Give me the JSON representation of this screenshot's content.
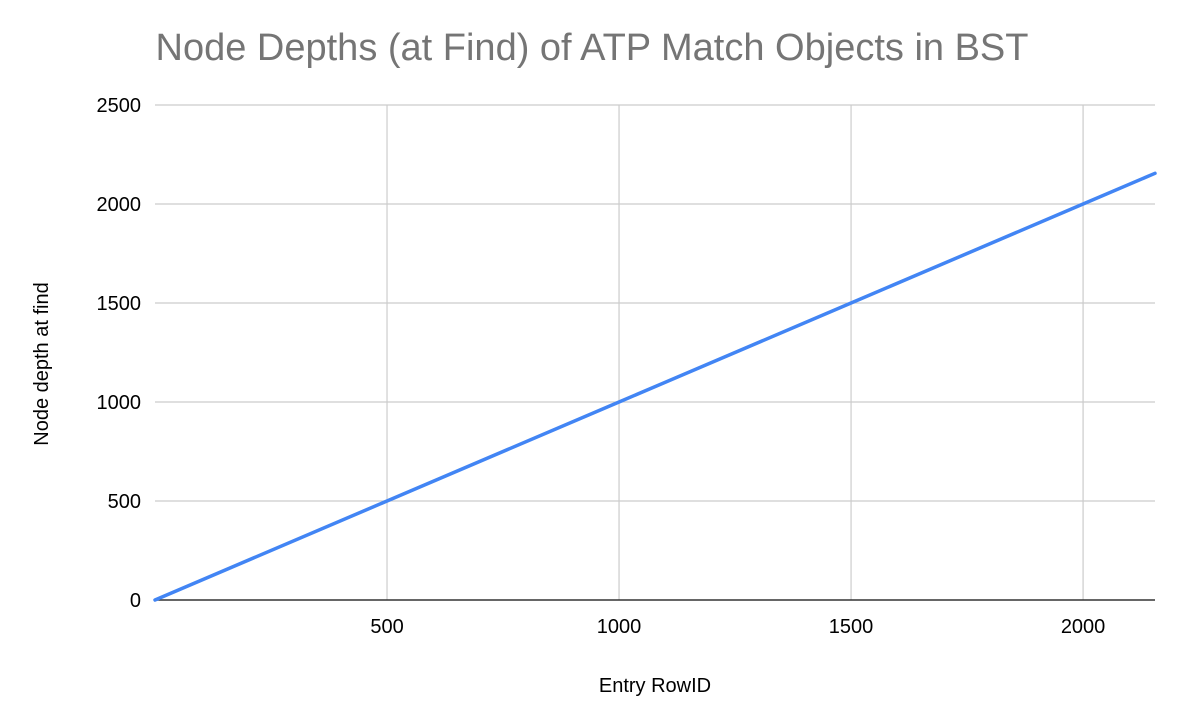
{
  "chart_data": {
    "type": "line",
    "title": "Node Depths (at Find) of ATP Match Objects in BST",
    "xlabel": "Entry RowID",
    "ylabel": "Node depth at find",
    "xlim": [
      0,
      2155
    ],
    "ylim": [
      0,
      2500
    ],
    "x_ticks": [
      500,
      1000,
      1500,
      2000
    ],
    "y_ticks": [
      0,
      500,
      1000,
      1500,
      2000,
      2500
    ],
    "grid": true,
    "legend": "none",
    "series": [
      {
        "color": "#4285f4",
        "x": [
          0,
          500,
          1000,
          1500,
          2000,
          2155
        ],
        "y": [
          0,
          500,
          1000,
          1500,
          2000,
          2155
        ]
      }
    ]
  },
  "colors": {
    "title": "#757575",
    "grid": "#cccccc",
    "baseline": "#333333",
    "text": "#000000"
  }
}
